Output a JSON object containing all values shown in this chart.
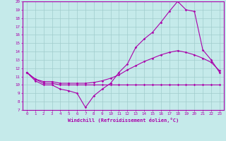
{
  "xlabel": "Windchill (Refroidissement éolien,°C)",
  "x_ticks": [
    0,
    1,
    2,
    3,
    4,
    5,
    6,
    7,
    8,
    9,
    10,
    11,
    12,
    13,
    14,
    15,
    16,
    17,
    18,
    19,
    20,
    21,
    22,
    23
  ],
  "ylim": [
    7,
    20
  ],
  "yticks": [
    7,
    8,
    9,
    10,
    11,
    12,
    13,
    14,
    15,
    16,
    17,
    18,
    19,
    20
  ],
  "background_color": "#c5eaea",
  "line_color": "#aa00aa",
  "grid_color": "#a0cccc",
  "line1_x": [
    0,
    1,
    2,
    3,
    4,
    5,
    6,
    7,
    8,
    9,
    10,
    11,
    12,
    13,
    14,
    15,
    16,
    17,
    18,
    19,
    20,
    21,
    22,
    23
  ],
  "line1_y": [
    11.5,
    10.5,
    10.0,
    10.0,
    9.5,
    9.3,
    9.0,
    7.3,
    8.7,
    9.5,
    10.2,
    11.5,
    12.5,
    14.5,
    15.5,
    16.3,
    17.5,
    18.8,
    20.0,
    19.0,
    18.8,
    14.2,
    13.0,
    11.5
  ],
  "line2_x": [
    0,
    1,
    2,
    3,
    4,
    5,
    6,
    7,
    8,
    9,
    10,
    11,
    12,
    13,
    14,
    15,
    16,
    17,
    18,
    19,
    20,
    21,
    22,
    23
  ],
  "line2_y": [
    11.5,
    10.7,
    10.2,
    10.2,
    10.0,
    10.0,
    10.0,
    10.0,
    10.0,
    10.0,
    10.0,
    10.0,
    10.0,
    10.0,
    10.0,
    10.0,
    10.0,
    10.0,
    10.0,
    10.0,
    10.0,
    10.0,
    10.0,
    10.0
  ],
  "line3_x": [
    0,
    1,
    2,
    3,
    4,
    5,
    6,
    7,
    8,
    9,
    10,
    11,
    12,
    13,
    14,
    15,
    16,
    17,
    18,
    19,
    20,
    21,
    22,
    23
  ],
  "line3_y": [
    11.5,
    10.7,
    10.4,
    10.4,
    10.2,
    10.2,
    10.2,
    10.2,
    10.3,
    10.5,
    10.8,
    11.2,
    11.8,
    12.3,
    12.8,
    13.2,
    13.6,
    13.9,
    14.1,
    13.9,
    13.6,
    13.2,
    12.7,
    11.7
  ]
}
